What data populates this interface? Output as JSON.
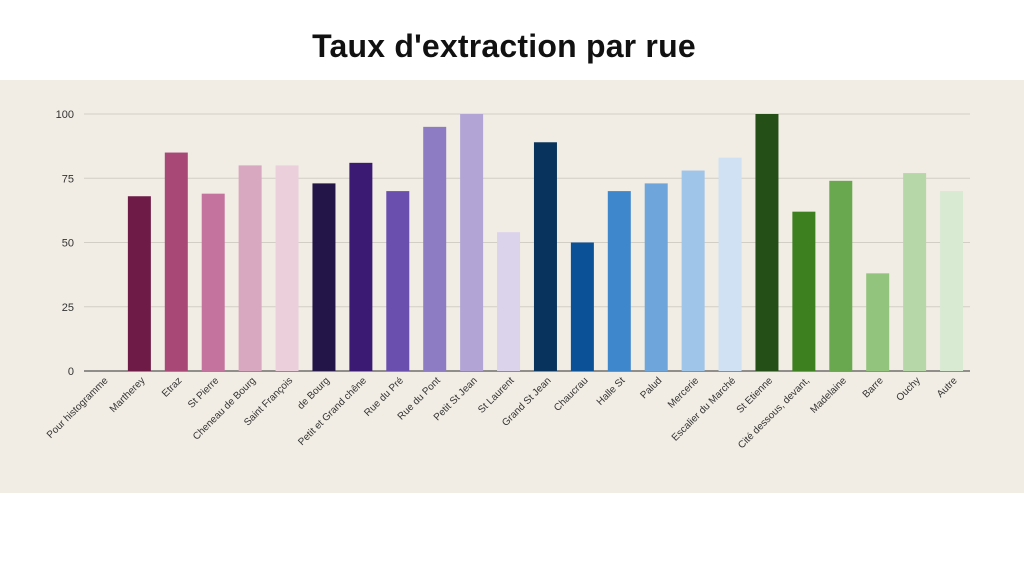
{
  "chart_data": {
    "type": "bar",
    "title": "Taux d'extraction par rue",
    "xlabel": "",
    "ylabel": "",
    "ylim": [
      0,
      100
    ],
    "yticks": [
      0,
      25,
      50,
      75,
      100
    ],
    "grid": true,
    "categories": [
      "Pour histogramme",
      "Martherey",
      "Etraz",
      "St Pierre",
      "Cheneau de Bourg",
      "Saint François",
      "de Bourg",
      "Petit et Grand chêne",
      "Rue du Pré",
      "Rue du Pont",
      "Petit St Jean",
      "St Laurent",
      "Grand St Jean",
      "Chaucrau",
      "Halle St",
      "Palud",
      "Mercerie",
      "Escalier du Marché",
      "St Etienne",
      "Cité dessous, devant,",
      "Madelaine",
      "Barre",
      "Ouchy",
      "Autre"
    ],
    "values": [
      0,
      68,
      85,
      69,
      80,
      80,
      73,
      81,
      70,
      95,
      100,
      54,
      89,
      50,
      70,
      73,
      78,
      83,
      100,
      62,
      74,
      38,
      77,
      70
    ],
    "colors": [
      "#ffffff",
      "#6e1b47",
      "#a84877",
      "#c4739e",
      "#d8a7c0",
      "#ebd0dc",
      "#231548",
      "#3a1a72",
      "#6a4fae",
      "#8d7cc4",
      "#b3a4d6",
      "#dbd3ec",
      "#07335c",
      "#0b5197",
      "#3f87cc",
      "#6ea6dc",
      "#9fc5e8",
      "#cfe1f3",
      "#244f16",
      "#3c801f",
      "#6aa84f",
      "#93c47d",
      "#b6d7a8",
      "#d9ead3"
    ]
  }
}
